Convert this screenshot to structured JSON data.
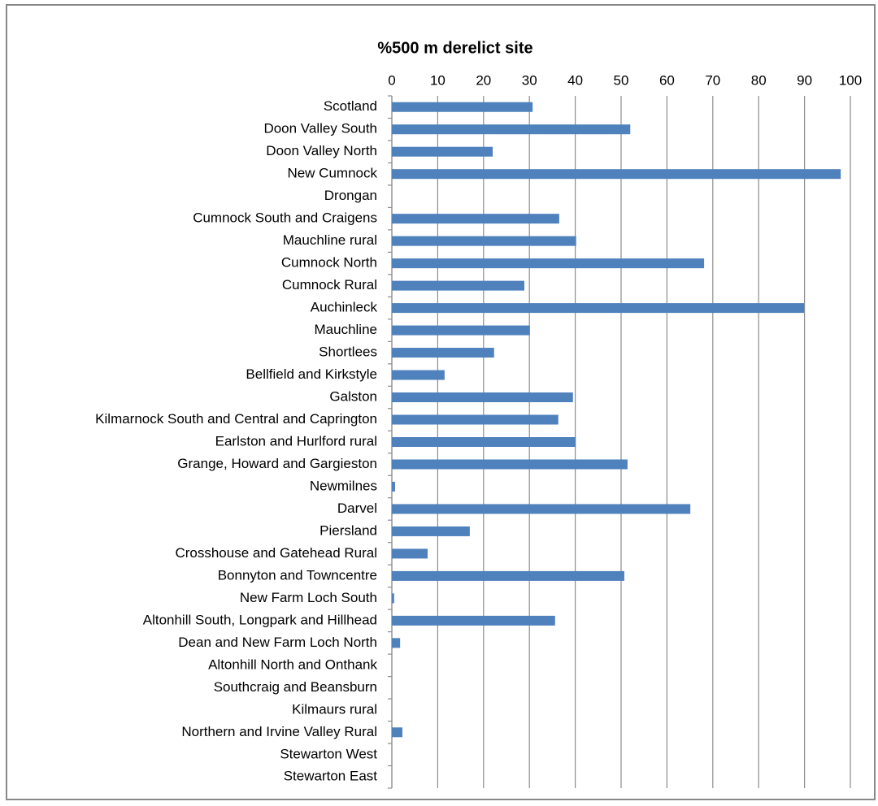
{
  "chart_data": {
    "type": "bar",
    "title": "%500 m derelict site",
    "categories": [
      "Scotland",
      "Doon Valley South",
      "Doon Valley North",
      "New Cumnock",
      "Drongan",
      "Cumnock South and Craigens",
      "Mauchline rural",
      "Cumnock North",
      "Cumnock Rural",
      "Auchinleck",
      "Mauchline",
      "Shortlees",
      "Bellfield and Kirkstyle",
      "Galston",
      "Kilmarnock South and Central and Caprington",
      "Earlston and Hurlford rural",
      "Grange, Howard and Gargieston",
      "Newmilnes",
      "Darvel",
      "Piersland",
      "Crosshouse and Gatehead Rural",
      "Bonnyton and Towncentre",
      "New Farm Loch South",
      "Altonhill South, Longpark and Hillhead",
      "Dean and New Farm Loch North",
      "Altonhill North and Onthank",
      "Southcraig and Beansburn",
      "Kilmaurs rural",
      "Northern and Irvine Valley Rural",
      "Stewarton West",
      "Stewarton East"
    ],
    "values": [
      30.7,
      52.0,
      22.0,
      97.9,
      0,
      36.5,
      40.2,
      68.1,
      28.9,
      89.9,
      30.1,
      22.3,
      11.5,
      39.5,
      36.3,
      40.1,
      51.4,
      0.7,
      65.1,
      17.0,
      7.8,
      50.7,
      0.5,
      35.6,
      1.8,
      0,
      0,
      0,
      2.3,
      0,
      0
    ],
    "color": "#4f81bd",
    "xlim": [
      0,
      100
    ],
    "xticks": [
      0,
      10,
      20,
      30,
      40,
      50,
      60,
      70,
      80,
      90,
      100
    ],
    "grid": true
  }
}
